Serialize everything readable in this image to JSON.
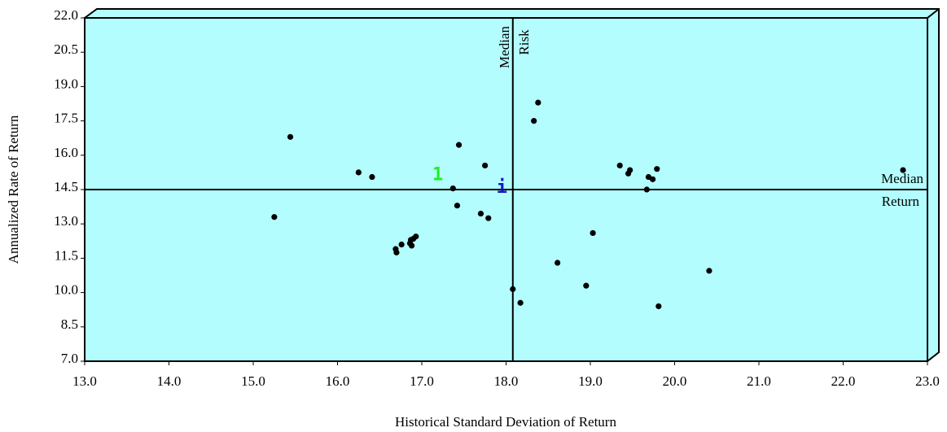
{
  "chart_data": {
    "type": "scatter",
    "xlabel": "Historical Standard Deviation of Return",
    "ylabel": "Annualized Rate of Return",
    "xlim": [
      13.0,
      23.0
    ],
    "ylim": [
      7.0,
      22.0
    ],
    "x_ticks": [
      "13.0",
      "14.0",
      "15.0",
      "16.0",
      "17.0",
      "18.0",
      "19.0",
      "20.0",
      "21.0",
      "22.0",
      "23.0"
    ],
    "y_ticks": [
      "7.0",
      "8.5",
      "10.0",
      "11.5",
      "13.0",
      "14.5",
      "16.0",
      "17.5",
      "19.0",
      "20.5",
      "22.0"
    ],
    "background_color": "#b3fdfe",
    "point_color": "#000000",
    "median_risk": {
      "value": 18.08,
      "label_line1": "Median",
      "label_line2": "Risk"
    },
    "median_return": {
      "value": 14.5,
      "label_line1": "Median",
      "label_line2": "Return"
    },
    "highlights": [
      {
        "label": "1",
        "x": 17.19,
        "y": 15.15,
        "color": "#22ee22"
      },
      {
        "label": "i",
        "x": 17.95,
        "y": 14.6,
        "color": "#1515c8"
      }
    ],
    "points": [
      {
        "x": 15.25,
        "y": 13.3
      },
      {
        "x": 15.44,
        "y": 16.8
      },
      {
        "x": 16.25,
        "y": 15.25
      },
      {
        "x": 16.41,
        "y": 15.05
      },
      {
        "x": 16.69,
        "y": 11.9
      },
      {
        "x": 16.7,
        "y": 11.75
      },
      {
        "x": 16.76,
        "y": 12.1
      },
      {
        "x": 16.86,
        "y": 12.15
      },
      {
        "x": 16.87,
        "y": 12.3
      },
      {
        "x": 16.88,
        "y": 12.05
      },
      {
        "x": 16.9,
        "y": 12.35
      },
      {
        "x": 16.93,
        "y": 12.45
      },
      {
        "x": 17.37,
        "y": 14.55
      },
      {
        "x": 17.42,
        "y": 13.8
      },
      {
        "x": 17.44,
        "y": 16.45
      },
      {
        "x": 17.7,
        "y": 13.45
      },
      {
        "x": 17.75,
        "y": 15.55
      },
      {
        "x": 17.79,
        "y": 13.25
      },
      {
        "x": 18.08,
        "y": 10.15
      },
      {
        "x": 18.17,
        "y": 9.55
      },
      {
        "x": 18.33,
        "y": 17.5
      },
      {
        "x": 18.38,
        "y": 18.3
      },
      {
        "x": 18.61,
        "y": 11.3
      },
      {
        "x": 18.95,
        "y": 10.3
      },
      {
        "x": 19.03,
        "y": 12.6
      },
      {
        "x": 19.35,
        "y": 15.55
      },
      {
        "x": 19.45,
        "y": 15.2
      },
      {
        "x": 19.47,
        "y": 15.35
      },
      {
        "x": 19.67,
        "y": 14.5
      },
      {
        "x": 19.69,
        "y": 15.05
      },
      {
        "x": 19.74,
        "y": 14.95
      },
      {
        "x": 19.79,
        "y": 15.4
      },
      {
        "x": 19.81,
        "y": 9.4
      },
      {
        "x": 20.41,
        "y": 10.95
      },
      {
        "x": 22.71,
        "y": 15.35
      }
    ]
  }
}
